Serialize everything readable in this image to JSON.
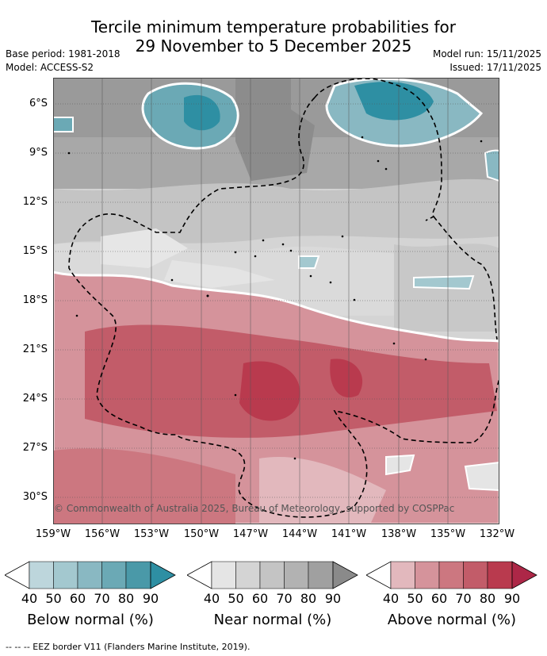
{
  "title_line1": "Tercile minimum temperature probabilities for",
  "title_line2": "29 November to 5 December 2025",
  "base_period": "Base period: 1981-2018",
  "model": "Model: ACCESS-S2",
  "model_run": "Model run: 15/11/2025",
  "issued": "Issued: 17/11/2025",
  "lat_labels": [
    "6°S",
    "9°S",
    "12°S",
    "15°S",
    "18°S",
    "21°S",
    "24°S",
    "27°S",
    "30°S"
  ],
  "lon_labels": [
    "159°W",
    "156°W",
    "153°W",
    "150°W",
    "147°W",
    "144°W",
    "141°W",
    "138°W",
    "135°W",
    "132°W"
  ],
  "credit": "© Commonwealth of Australia 2025, Bureau of Meteorology, supported by COSPPac",
  "colorbars": [
    {
      "label": "Below normal (%)",
      "ticks": [
        "40",
        "50",
        "60",
        "70",
        "80",
        "90"
      ],
      "colors": [
        "#ffffff",
        "#bdd6dc",
        "#a3c8cf",
        "#89b8c2",
        "#6ba9b5",
        "#4a99a8",
        "#2e8fa3"
      ]
    },
    {
      "label": "Near normal (%)",
      "ticks": [
        "40",
        "50",
        "60",
        "70",
        "80",
        "90"
      ],
      "colors": [
        "#ffffff",
        "#e5e5e5",
        "#d4d4d4",
        "#c4c4c4",
        "#b2b2b2",
        "#a0a0a0",
        "#8a8a8a"
      ]
    },
    {
      "label": "Above normal (%)",
      "ticks": [
        "40",
        "50",
        "60",
        "70",
        "80",
        "90"
      ],
      "colors": [
        "#ffffff",
        "#e2b8bd",
        "#d5939b",
        "#cc7780",
        "#c25c69",
        "#b93a4e",
        "#ad2747"
      ]
    }
  ],
  "footer": "-- -- -- EEZ border V11 (Flanders Marine Institute, 2019)."
}
